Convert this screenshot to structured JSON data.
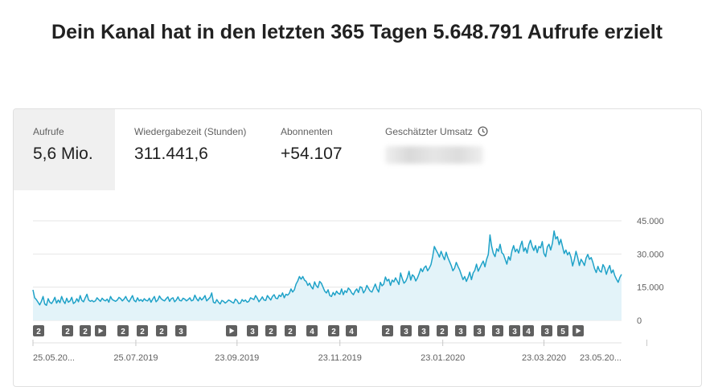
{
  "headline": "Dein Kanal hat in den letzten 365 Tagen 5.648.791 Aufrufe erzielt",
  "metrics": [
    {
      "label": "Aufrufe",
      "value": "5,6 Mio."
    },
    {
      "label": "Wiedergabezeit (Stunden)",
      "value": "311.441,6"
    },
    {
      "label": "Abonnenten",
      "value": "+54.107"
    },
    {
      "label": "Geschätzter Umsatz",
      "value": "",
      "icon": "clock-icon"
    }
  ],
  "colors": {
    "line": "#1fa2c8",
    "area": "#e3f3f9",
    "marker": "#606060",
    "grid": "#e6e6e6"
  },
  "chart_data": {
    "type": "area",
    "title": "Aufrufe",
    "ylim": [
      0,
      45000
    ],
    "y_ticks": [
      "0",
      "15.000",
      "30.000",
      "45.000"
    ],
    "y_tick_values": [
      0,
      15000,
      30000,
      45000
    ],
    "x_tick_labels": [
      "25.05.20...",
      "25.07.2019",
      "23.09.2019",
      "23.11.2019",
      "23.01.2020",
      "23.03.2020",
      "23.05.20..."
    ],
    "x_tick_index": [
      0,
      61,
      121,
      182,
      243,
      303,
      364
    ],
    "markers": [
      "2",
      "2",
      "2",
      "play",
      "2",
      "2",
      "2",
      "3",
      "play",
      "3",
      "2",
      "2",
      "4",
      "2",
      "4",
      "2",
      "3",
      "3",
      "2",
      "3",
      "3",
      "3",
      "3",
      "4",
      "3",
      "5",
      "play"
    ],
    "series": [
      {
        "name": "Aufrufe",
        "values": [
          13800,
          10200,
          9400,
          8200,
          7000,
          8600,
          10800,
          7400,
          6800,
          9800,
          8200,
          7600,
          8800,
          10400,
          7800,
          9200,
          8000,
          10800,
          8800,
          7600,
          10000,
          8200,
          8800,
          10400,
          7600,
          8200,
          9800,
          8400,
          11200,
          9000,
          8400,
          10200,
          11800,
          9200,
          8600,
          9000,
          8400,
          8800,
          10200,
          9400,
          8600,
          10000,
          9200,
          8800,
          9600,
          8200,
          10800,
          9400,
          9000,
          8600,
          9200,
          10400,
          9800,
          8800,
          9600,
          10800,
          9200,
          8400,
          9800,
          11200,
          9000,
          8400,
          10200,
          8800,
          9400,
          8600,
          9800,
          9000,
          8800,
          10000,
          8200,
          9600,
          10800,
          8400,
          9200,
          11000,
          9800,
          9200,
          8800,
          9800,
          10600,
          8600,
          9800,
          10200,
          8400,
          9200,
          10600,
          9000,
          8800,
          10000,
          9600,
          8800,
          9400,
          10200,
          8800,
          9200,
          11400,
          9800,
          8800,
          10400,
          9200,
          10000,
          11200,
          8800,
          9600,
          10400,
          12400,
          8200,
          7800,
          9400,
          8200,
          7400,
          9000,
          8600,
          7800,
          8400,
          9200,
          8800,
          8200,
          7800,
          9600,
          9000,
          7600,
          7800,
          9400,
          8600,
          9200,
          8200,
          8600,
          10200,
          9800,
          9400,
          11200,
          10000,
          8400,
          9400,
          10600,
          9200,
          9000,
          11200,
          10200,
          9200,
          10800,
          11600,
          10000,
          9800,
          11400,
          10800,
          12400,
          10200,
          11800,
          11400,
          12200,
          14200,
          12800,
          13800,
          16400,
          17800,
          19800,
          18600,
          19800,
          18200,
          17600,
          15800,
          16800,
          15200,
          14200,
          17400,
          15600,
          14800,
          17600,
          16800,
          15000,
          13200,
          12400,
          13800,
          11200,
          10800,
          12600,
          11400,
          13200,
          12200,
          11800,
          14200,
          11600,
          13400,
          12600,
          14600,
          13800,
          12400,
          11600,
          13200,
          14200,
          12600,
          15200,
          14800,
          12400,
          13600,
          15800,
          14400,
          13200,
          12800,
          14600,
          16400,
          14200,
          12800,
          17200,
          15600,
          16400,
          19600,
          17800,
          18600,
          15800,
          18200,
          17400,
          19200,
          17800,
          16200,
          21400,
          18800,
          16800,
          17600,
          19400,
          22200,
          18200,
          20600,
          19800,
          17800,
          19200,
          21200,
          23400,
          22000,
          23800,
          24600,
          22400,
          23600,
          25200,
          28800,
          33400,
          31800,
          30400,
          28600,
          31200,
          29200,
          27400,
          30800,
          28400,
          26600,
          24800,
          22400,
          23600,
          26200,
          24400,
          22800,
          20600,
          18400,
          19800,
          17600,
          19400,
          21800,
          18400,
          21400,
          22600,
          25400,
          22200,
          23800,
          25400,
          26800,
          24200,
          27600,
          29800,
          38600,
          33400,
          30200,
          28800,
          32400,
          31200,
          34400,
          30600,
          29800,
          27600,
          25400,
          28800,
          27200,
          31400,
          33800,
          31000,
          32200,
          30400,
          33600,
          35800,
          31200,
          32800,
          30400,
          34200,
          36200,
          33400,
          31600,
          33800,
          30600,
          33400,
          32800,
          35600,
          30200,
          28800,
          33200,
          34400,
          31800,
          34800,
          40400,
          36800,
          37800,
          34200,
          36600,
          33400,
          30200,
          31800,
          29600,
          30800,
          28600,
          24600,
          27400,
          31200,
          28400,
          24800,
          27600,
          26400,
          24800,
          28200,
          29800,
          27600,
          28400,
          26200,
          23400,
          21600,
          24400,
          22400,
          21800,
          25200,
          23800,
          20800,
          23200,
          24800,
          21400,
          22800,
          20200,
          18600,
          17200,
          19400,
          20800
        ]
      }
    ]
  }
}
